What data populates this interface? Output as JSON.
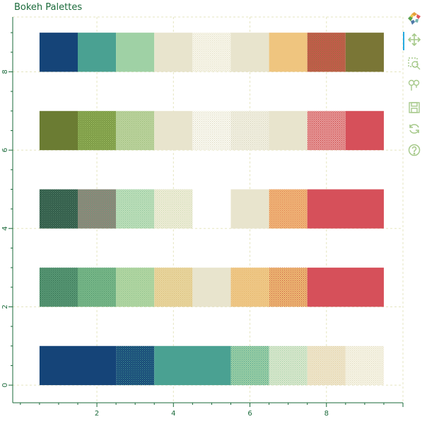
{
  "title": "Bokeh Palettes",
  "toolbar": {
    "tools": [
      {
        "name": "bokeh-logo-icon"
      },
      {
        "name": "pan-icon",
        "active": true
      },
      {
        "name": "box-zoom-icon"
      },
      {
        "name": "wheel-zoom-icon"
      },
      {
        "name": "save-icon"
      },
      {
        "name": "reset-icon"
      },
      {
        "name": "help-icon"
      }
    ]
  },
  "chart_data": {
    "type": "bar",
    "orientation": "horizontal-tiles",
    "xlim": [
      -0.2,
      10
    ],
    "ylim": [
      -0.45,
      9.4
    ],
    "x_ticks": [
      2,
      4,
      6,
      8
    ],
    "y_ticks": [
      0,
      2,
      4,
      6,
      8
    ],
    "grid": true,
    "rows": [
      {
        "y": 0,
        "height": 1,
        "tiles": [
          {
            "x0": 0.5,
            "x1": 2.5,
            "color": "#154478",
            "pattern": "solid"
          },
          {
            "x0": 2.5,
            "x1": 3.5,
            "color": "#154478",
            "pattern": "dots",
            "dot_color": "#4aa192"
          },
          {
            "x0": 3.5,
            "x1": 5.5,
            "color": "#4aa192",
            "pattern": "solid"
          },
          {
            "x0": 5.5,
            "x1": 6.5,
            "color": "#9fd1a5",
            "pattern": "dots",
            "dot_color": "#4aa192"
          },
          {
            "x0": 6.5,
            "x1": 7.5,
            "color": "#dbe8cf",
            "pattern": "dots",
            "dot_color": "#9fd1a5"
          },
          {
            "x0": 7.5,
            "x1": 8.5,
            "color": "#eee6cc",
            "pattern": "dots",
            "dot_color": "#e3cfa3"
          },
          {
            "x0": 8.5,
            "x1": 9.5,
            "color": "#f7f4e6",
            "pattern": "dots",
            "dot_color": "#e0dcc0"
          }
        ]
      },
      {
        "y": 2,
        "height": 1,
        "tiles": [
          {
            "x0": 0.5,
            "x1": 1.5,
            "color": "#5a9a76",
            "pattern": "dots",
            "dot_color": "#2f6b4e"
          },
          {
            "x0": 1.5,
            "x1": 2.5,
            "color": "#7ab98a",
            "pattern": "dots",
            "dot_color": "#4e946a"
          },
          {
            "x0": 2.5,
            "x1": 3.5,
            "color": "#b4d7a3",
            "pattern": "dots",
            "dot_color": "#8cc18e"
          },
          {
            "x0": 3.5,
            "x1": 4.5,
            "color": "#e9d7a0",
            "pattern": "dots",
            "dot_color": "#d9bc78"
          },
          {
            "x0": 4.5,
            "x1": 5.5,
            "color": "#e8e4cd",
            "pattern": "solid"
          },
          {
            "x0": 5.5,
            "x1": 6.5,
            "color": "#efc989",
            "pattern": "dots",
            "dot_color": "#e6b468"
          },
          {
            "x0": 6.5,
            "x1": 7.5,
            "color": "#efc177",
            "pattern": "dots",
            "dot_color": "#c9503f"
          },
          {
            "x0": 7.5,
            "x1": 9.5,
            "color": "#d6505a",
            "pattern": "solid"
          }
        ]
      },
      {
        "y": 4,
        "height": 1,
        "tiles": [
          {
            "x0": 0.5,
            "x1": 1.5,
            "color": "#2f5a48",
            "pattern": "dots",
            "dot_color": "#5e8a70"
          },
          {
            "x0": 1.5,
            "x1": 2.5,
            "color": "#7a8f7a",
            "pattern": "dots",
            "dot_color": "#b07a76"
          },
          {
            "x0": 2.5,
            "x1": 3.5,
            "color": "#bfe0bb",
            "pattern": "dots",
            "dot_color": "#8cc39a"
          },
          {
            "x0": 3.5,
            "x1": 4.5,
            "color": "#efecd8",
            "pattern": "dots",
            "dot_color": "#c9dcb0"
          },
          {
            "x0": 5.5,
            "x1": 6.5,
            "color": "#e8e4cd",
            "pattern": "solid"
          },
          {
            "x0": 6.5,
            "x1": 7.5,
            "color": "#f0b77a",
            "pattern": "dots",
            "dot_color": "#df7f4f"
          },
          {
            "x0": 7.5,
            "x1": 9.5,
            "color": "#d6505a",
            "pattern": "solid"
          }
        ]
      },
      {
        "y": 6,
        "height": 1,
        "tiles": [
          {
            "x0": 0.5,
            "x1": 1.5,
            "color": "#6b7c33",
            "pattern": "solid"
          },
          {
            "x0": 1.5,
            "x1": 2.5,
            "color": "#7b9a44",
            "pattern": "dots",
            "dot_color": "#a6c46a"
          },
          {
            "x0": 2.5,
            "x1": 3.5,
            "color": "#bcd39e",
            "pattern": "dots",
            "dot_color": "#9bbd7a"
          },
          {
            "x0": 3.5,
            "x1": 4.5,
            "color": "#e8e4cd",
            "pattern": "solid"
          },
          {
            "x0": 4.5,
            "x1": 5.5,
            "color": "#fbfaf2",
            "pattern": "dots",
            "dot_color": "#d9d5bd"
          },
          {
            "x0": 5.5,
            "x1": 6.5,
            "color": "#f2f0e2",
            "pattern": "dots",
            "dot_color": "#d6d3ba"
          },
          {
            "x0": 6.5,
            "x1": 7.5,
            "color": "#e8e4cd",
            "pattern": "solid"
          },
          {
            "x0": 7.5,
            "x1": 8.5,
            "color": "#e79b9b",
            "pattern": "dots",
            "dot_color": "#c8403f"
          },
          {
            "x0": 8.5,
            "x1": 9.5,
            "color": "#d6505a",
            "pattern": "solid"
          }
        ]
      },
      {
        "y": 8,
        "height": 1,
        "tiles": [
          {
            "x0": 0.5,
            "x1": 1.5,
            "color": "#154478",
            "pattern": "solid"
          },
          {
            "x0": 1.5,
            "x1": 2.5,
            "color": "#4aa192",
            "pattern": "solid"
          },
          {
            "x0": 2.5,
            "x1": 3.5,
            "color": "#9fd1a5",
            "pattern": "solid"
          },
          {
            "x0": 3.5,
            "x1": 4.5,
            "color": "#e8e4cd",
            "pattern": "solid"
          },
          {
            "x0": 4.5,
            "x1": 5.5,
            "color": "#f8f6ea",
            "pattern": "dots",
            "dot_color": "#e2dfc6"
          },
          {
            "x0": 5.5,
            "x1": 6.5,
            "color": "#e8e4cd",
            "pattern": "solid"
          },
          {
            "x0": 6.5,
            "x1": 7.5,
            "color": "#efc57f",
            "pattern": "solid"
          },
          {
            "x0": 7.5,
            "x1": 8.5,
            "color": "#c8574b",
            "pattern": "dots",
            "dot_color": "#8c7a3a"
          },
          {
            "x0": 8.5,
            "x1": 9.5,
            "color": "#7a7636",
            "pattern": "solid"
          }
        ]
      }
    ]
  }
}
